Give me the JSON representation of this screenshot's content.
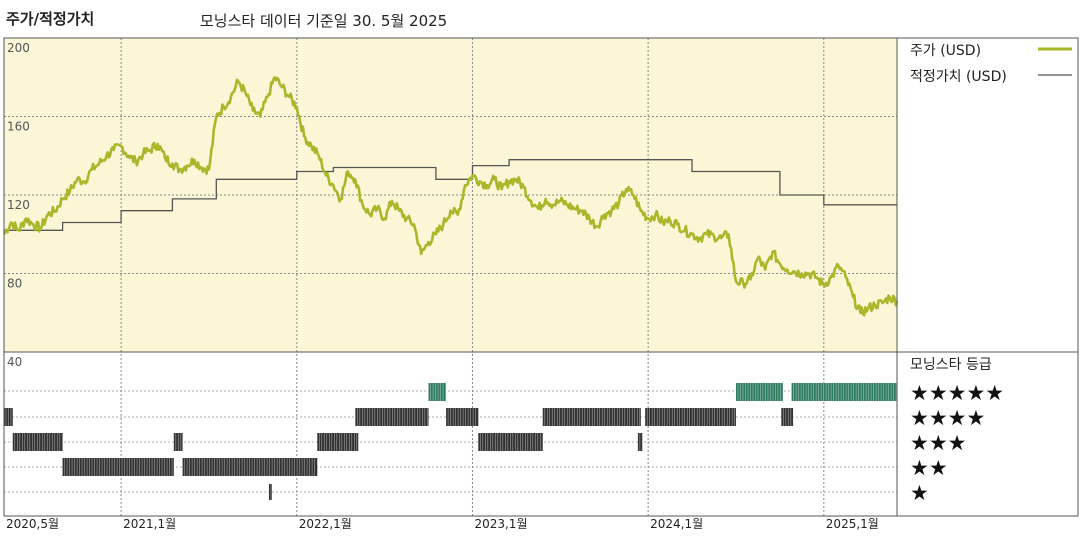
{
  "header": {
    "title": "주가/적정가치",
    "subtitle": "모닝스타 데이터 기준일 30. 5월 2025"
  },
  "legend": {
    "price_label": "주가 (USD)",
    "fair_label": "적정가치 (USD)",
    "rating_title": "모닝스타 등급"
  },
  "colors": {
    "price": "#a8b82a",
    "fair": "#555555",
    "upper_bg": "#faf6d6",
    "five_star": "#2e7d62",
    "rating_bar": "#333333"
  },
  "chart_data": {
    "type": "line",
    "y_ticks": [
      "200",
      "160",
      "120",
      "80",
      "40"
    ],
    "ylim": [
      40,
      200
    ],
    "x_range": [
      "2020-05",
      "2025-06"
    ],
    "x_ticks": [
      {
        "label": "2020,5월",
        "t": 0
      },
      {
        "label": "2021,1월",
        "t": 8
      },
      {
        "label": "2022,1월",
        "t": 20
      },
      {
        "label": "2023,1월",
        "t": 32
      },
      {
        "label": "2024,1월",
        "t": 44
      },
      {
        "label": "2025,1월",
        "t": 56
      }
    ],
    "series": [
      {
        "name": "주가 (USD)",
        "points": [
          [
            0,
            100
          ],
          [
            0.5,
            106
          ],
          [
            1,
            102
          ],
          [
            1.5,
            108
          ],
          [
            2,
            105
          ],
          [
            2.5,
            103
          ],
          [
            3,
            110
          ],
          [
            3.5,
            112
          ],
          [
            4,
            118
          ],
          [
            4.5,
            122
          ],
          [
            5,
            128
          ],
          [
            5.5,
            127
          ],
          [
            6,
            133
          ],
          [
            6.5,
            136
          ],
          [
            7,
            140
          ],
          [
            7.5,
            143
          ],
          [
            8,
            145
          ],
          [
            8.5,
            140
          ],
          [
            9,
            137
          ],
          [
            9.5,
            141
          ],
          [
            10,
            143
          ],
          [
            10.5,
            146
          ],
          [
            11,
            139
          ],
          [
            11.5,
            136
          ],
          [
            12,
            133
          ],
          [
            12.5,
            135
          ],
          [
            13,
            138
          ],
          [
            13.5,
            134
          ],
          [
            14,
            133
          ],
          [
            14.5,
            160
          ],
          [
            15,
            165
          ],
          [
            15.5,
            170
          ],
          [
            16,
            178
          ],
          [
            16.5,
            172
          ],
          [
            17,
            163
          ],
          [
            17.5,
            160
          ],
          [
            18,
            170
          ],
          [
            18.5,
            180
          ],
          [
            19,
            175
          ],
          [
            19.5,
            170
          ],
          [
            20,
            165
          ],
          [
            20.5,
            150
          ],
          [
            21,
            145
          ],
          [
            21.5,
            140
          ],
          [
            22,
            130
          ],
          [
            22.5,
            125
          ],
          [
            23,
            118
          ],
          [
            23.5,
            132
          ],
          [
            24,
            128
          ],
          [
            24.5,
            115
          ],
          [
            25,
            110
          ],
          [
            25.5,
            113
          ],
          [
            26,
            108
          ],
          [
            26.5,
            117
          ],
          [
            27,
            112
          ],
          [
            27.5,
            108
          ],
          [
            28,
            105
          ],
          [
            28.5,
            90
          ],
          [
            29,
            96
          ],
          [
            29.5,
            100
          ],
          [
            30,
            105
          ],
          [
            30.5,
            112
          ],
          [
            31,
            110
          ],
          [
            31.5,
            125
          ],
          [
            32,
            130
          ],
          [
            32.5,
            127
          ],
          [
            33,
            125
          ],
          [
            33.5,
            128
          ],
          [
            34,
            123
          ],
          [
            34.5,
            127
          ],
          [
            35,
            128
          ],
          [
            35.5,
            124
          ],
          [
            36,
            117
          ],
          [
            36.5,
            113
          ],
          [
            37,
            118
          ],
          [
            37.5,
            115
          ],
          [
            38,
            117
          ],
          [
            38.5,
            115
          ],
          [
            39,
            113
          ],
          [
            39.5,
            112
          ],
          [
            40,
            108
          ],
          [
            40.5,
            104
          ],
          [
            41,
            110
          ],
          [
            41.5,
            112
          ],
          [
            42,
            116
          ],
          [
            42.5,
            123
          ],
          [
            43,
            120
          ],
          [
            43.5,
            112
          ],
          [
            44,
            108
          ],
          [
            44.5,
            110
          ],
          [
            45,
            106
          ],
          [
            45.5,
            107
          ],
          [
            46,
            105
          ],
          [
            46.5,
            102
          ],
          [
            47,
            100
          ],
          [
            47.5,
            98
          ],
          [
            48,
            100
          ],
          [
            48.5,
            99
          ],
          [
            49,
            98
          ],
          [
            49.5,
            100
          ],
          [
            50,
            76
          ],
          [
            50.5,
            75
          ],
          [
            51,
            77
          ],
          [
            51.5,
            88
          ],
          [
            52,
            82
          ],
          [
            52.5,
            91
          ],
          [
            53,
            85
          ],
          [
            53.5,
            82
          ],
          [
            54,
            81
          ],
          [
            54.5,
            80
          ],
          [
            55,
            80
          ],
          [
            55.5,
            78
          ],
          [
            56,
            74
          ],
          [
            56.5,
            78
          ],
          [
            57,
            84
          ],
          [
            57.5,
            78
          ],
          [
            58,
            68
          ],
          [
            58.5,
            60
          ],
          [
            59,
            62
          ],
          [
            59.5,
            64
          ],
          [
            60,
            65
          ],
          [
            60.5,
            68
          ],
          [
            61,
            66
          ]
        ]
      },
      {
        "name": "적정가치 (USD)",
        "points": [
          [
            0,
            102
          ],
          [
            4,
            102
          ],
          [
            4,
            106
          ],
          [
            8,
            106
          ],
          [
            8,
            112
          ],
          [
            11.5,
            112
          ],
          [
            11.5,
            118
          ],
          [
            14.5,
            118
          ],
          [
            14.5,
            128
          ],
          [
            20,
            128
          ],
          [
            20,
            132
          ],
          [
            22.5,
            132
          ],
          [
            22.5,
            134
          ],
          [
            29.5,
            134
          ],
          [
            29.5,
            128
          ],
          [
            32,
            128
          ],
          [
            32,
            135
          ],
          [
            34.5,
            135
          ],
          [
            34.5,
            138
          ],
          [
            47,
            138
          ],
          [
            47,
            132
          ],
          [
            53,
            132
          ],
          [
            53,
            120
          ],
          [
            56,
            120
          ],
          [
            56,
            115
          ],
          [
            61,
            115
          ]
        ]
      }
    ],
    "rating": {
      "rows": [
        "★★★★★",
        "★★★★",
        "★★★",
        "★★",
        "★"
      ],
      "segments": [
        {
          "stars": 5,
          "start": 29,
          "end": 30.2
        },
        {
          "stars": 5,
          "start": 50,
          "end": 53.2
        },
        {
          "stars": 5,
          "start": 53.8,
          "end": 61
        },
        {
          "stars": 4,
          "start": 0,
          "end": 0.6
        },
        {
          "stars": 4,
          "start": 24,
          "end": 29
        },
        {
          "stars": 4,
          "start": 30.2,
          "end": 32.4
        },
        {
          "stars": 4,
          "start": 36.8,
          "end": 43.5
        },
        {
          "stars": 4,
          "start": 43.8,
          "end": 50
        },
        {
          "stars": 4,
          "start": 53.1,
          "end": 53.9
        },
        {
          "stars": 3,
          "start": 0.6,
          "end": 4
        },
        {
          "stars": 3,
          "start": 11.6,
          "end": 12.2
        },
        {
          "stars": 3,
          "start": 21.4,
          "end": 24.2
        },
        {
          "stars": 3,
          "start": 32.4,
          "end": 36.8
        },
        {
          "stars": 3,
          "start": 43.3,
          "end": 43.6
        },
        {
          "stars": 2,
          "start": 4,
          "end": 11.6
        },
        {
          "stars": 2,
          "start": 12.2,
          "end": 21.4
        },
        {
          "stars": 1,
          "start": 18.1,
          "end": 18.3
        }
      ]
    }
  }
}
